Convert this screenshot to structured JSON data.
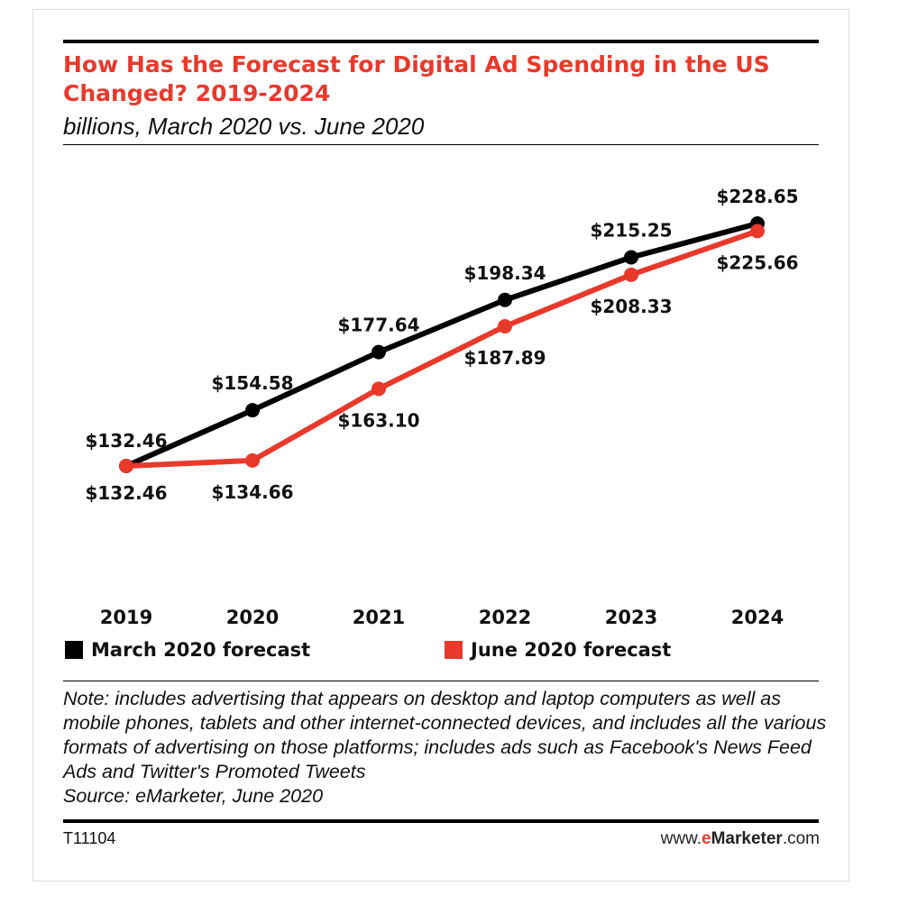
{
  "chart_data": {
    "type": "line",
    "title": "How Has the Forecast for Digital Ad Spending in the US Changed? 2019-2024",
    "subtitle": "billions, March 2020 vs. June 2020",
    "categories": [
      "2019",
      "2020",
      "2021",
      "2022",
      "2023",
      "2024"
    ],
    "series": [
      {
        "name": "March 2020 forecast",
        "color": "#000000",
        "values": [
          132.46,
          154.58,
          177.64,
          198.34,
          215.25,
          228.65
        ],
        "labels": [
          "$132.46",
          "$154.58",
          "$177.64",
          "$198.34",
          "$215.25",
          "$228.65"
        ],
        "label_position": "above"
      },
      {
        "name": "June 2020 forecast",
        "color": "#e8392b",
        "values": [
          132.46,
          134.66,
          163.1,
          187.89,
          208.33,
          225.66
        ],
        "labels": [
          "$132.46",
          "$134.66",
          "$163.10",
          "$187.89",
          "$208.33",
          "$225.66"
        ],
        "label_position": "below"
      }
    ],
    "grid": false,
    "legend_placement": "bottom"
  },
  "legend": {
    "march_label": "March 2020 forecast",
    "june_label": "June 2020 forecast"
  },
  "note": "Note: includes advertising that appears on desktop and laptop computers as well as mobile phones, tablets and other internet-connected devices, and includes all the various formats of advertising on those platforms; includes ads such as Facebook's News Feed Ads and Twitter's Promoted Tweets",
  "source": "Source: eMarketer, June 2020",
  "footer": {
    "chart_id": "T11104",
    "site_prefix": "www.",
    "site_e": "e",
    "site_brand": "Marketer",
    "site_suffix": ".com"
  },
  "colors": {
    "accent": "#e8392b",
    "text": "#111111"
  }
}
